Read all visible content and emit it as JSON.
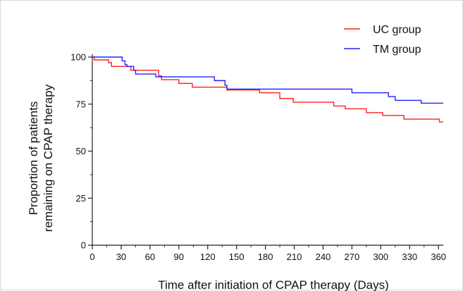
{
  "chart_data": {
    "type": "line",
    "step": true,
    "xlabel": "Time after initiation of CPAP therapy (Days)",
    "ylabel_lines": [
      "Proportion of patients",
      "remaining on CPAP therapy"
    ],
    "xlim": [
      0,
      365
    ],
    "ylim": [
      0,
      100
    ],
    "xticks": [
      0,
      30,
      60,
      90,
      120,
      150,
      180,
      210,
      240,
      270,
      300,
      330,
      360
    ],
    "yticks": [
      0,
      25,
      50,
      75,
      100
    ],
    "grid": false,
    "legend_position": "top-right",
    "series": [
      {
        "name": "UC group",
        "color": "#ff2020",
        "points": [
          [
            0,
            100
          ],
          [
            2,
            98.5
          ],
          [
            17,
            97
          ],
          [
            20,
            95
          ],
          [
            38,
            95
          ],
          [
            40,
            93
          ],
          [
            67,
            93
          ],
          [
            69,
            90
          ],
          [
            72,
            88
          ],
          [
            88,
            88
          ],
          [
            90,
            86
          ],
          [
            102,
            86
          ],
          [
            104,
            84
          ],
          [
            138,
            84
          ],
          [
            140,
            82.5
          ],
          [
            172,
            82.5
          ],
          [
            174,
            81
          ],
          [
            193,
            81
          ],
          [
            195,
            78
          ],
          [
            207,
            78
          ],
          [
            209,
            76
          ],
          [
            248,
            76
          ],
          [
            251,
            74
          ],
          [
            261,
            74
          ],
          [
            263,
            72.5
          ],
          [
            282,
            72.5
          ],
          [
            285,
            70.5
          ],
          [
            299,
            70.5
          ],
          [
            302,
            69
          ],
          [
            322,
            69
          ],
          [
            324,
            67
          ],
          [
            359,
            67
          ],
          [
            361,
            65.5
          ],
          [
            365,
            65.5
          ]
        ]
      },
      {
        "name": "TM group",
        "color": "#2020ff",
        "points": [
          [
            0,
            100
          ],
          [
            29,
            100
          ],
          [
            31,
            98
          ],
          [
            34,
            96
          ],
          [
            36,
            95
          ],
          [
            41,
            95
          ],
          [
            43,
            93
          ],
          [
            45,
            91
          ],
          [
            64,
            91
          ],
          [
            66,
            89.5
          ],
          [
            125,
            89.5
          ],
          [
            127,
            87.5
          ],
          [
            136,
            87.5
          ],
          [
            138,
            85
          ],
          [
            140,
            83
          ],
          [
            268,
            83
          ],
          [
            270,
            81
          ],
          [
            305,
            81
          ],
          [
            308,
            79
          ],
          [
            313,
            79
          ],
          [
            315,
            77
          ],
          [
            340,
            77
          ],
          [
            342,
            75.5
          ],
          [
            365,
            75.5
          ]
        ]
      }
    ]
  }
}
